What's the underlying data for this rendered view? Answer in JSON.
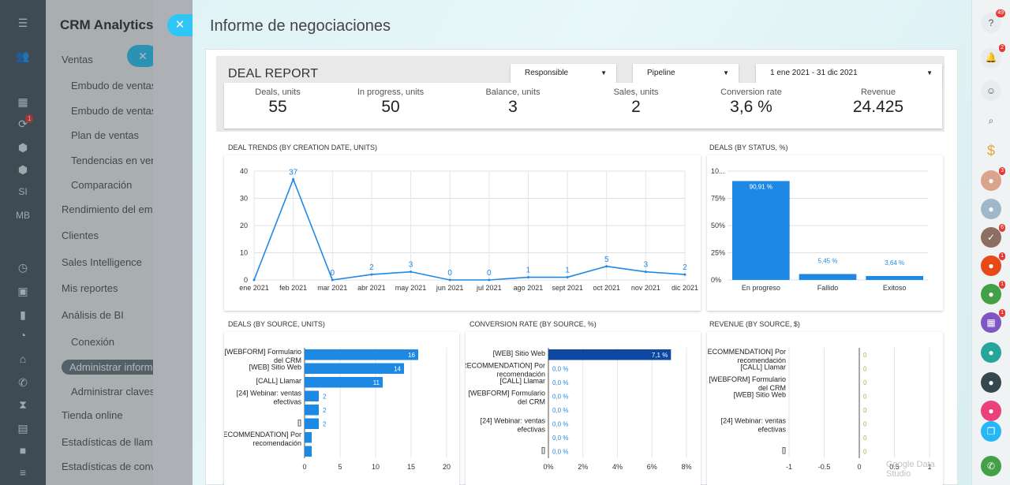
{
  "left_rail": {
    "badge_count": "1",
    "labels": [
      "SI",
      "MB"
    ]
  },
  "menu": {
    "title": "CRM Analytics",
    "items": [
      {
        "label": "Ventas",
        "sub": false
      },
      {
        "label": "Embudo de ventas",
        "sub": true
      },
      {
        "label": "Embudo de ventas",
        "sub": true
      },
      {
        "label": "Plan de ventas",
        "sub": true
      },
      {
        "label": "Tendencias en vent",
        "sub": true
      },
      {
        "label": "Comparación",
        "sub": true
      },
      {
        "label": "Rendimiento del emp",
        "sub": false
      },
      {
        "label": "Clientes",
        "sub": false
      },
      {
        "label": "Sales Intelligence",
        "sub": false
      },
      {
        "label": "Mis reportes",
        "sub": false
      },
      {
        "label": "Análisis de BI",
        "sub": false
      },
      {
        "label": "Conexión",
        "sub": true
      },
      {
        "label": "Administrar inform",
        "sub": false,
        "active": true
      },
      {
        "label": "Administrar claves",
        "sub": true
      },
      {
        "label": "Tienda online",
        "sub": false
      },
      {
        "label": "Estadísticas de llama",
        "sub": false
      },
      {
        "label": "Estadísticas de conve",
        "sub": false
      }
    ]
  },
  "slider": {
    "title": "Informe de negociaciones"
  },
  "report": {
    "title": "DEAL REPORT",
    "filters": {
      "responsible": "Responsible",
      "pipeline": "Pipeline",
      "date_range": "1 ene 2021 - 31 dic 2021"
    },
    "kpis": [
      {
        "label": "Deals, units",
        "value": "55"
      },
      {
        "label": "In progress, units",
        "value": "50"
      },
      {
        "label": "Balance, units",
        "value": "3"
      },
      {
        "label": "Sales, units",
        "value": "2"
      },
      {
        "label": "Conversion rate",
        "value": "3,6 %"
      },
      {
        "label": "Revenue",
        "value": "24.425"
      }
    ],
    "watermark": "Google Data Studio"
  },
  "chart_data": [
    {
      "type": "line",
      "title": "DEAL TRENDS (BY CREATION DATE, UNITS)",
      "categories": [
        "ene 2021",
        "feb 2021",
        "mar 2021",
        "abr 2021",
        "may 2021",
        "jun 2021",
        "jul 2021",
        "ago 2021",
        "sept 2021",
        "oct 2021",
        "nov 2021",
        "dic 2021"
      ],
      "values": [
        0,
        37,
        0,
        2,
        3,
        0,
        0,
        1,
        1,
        5,
        3,
        2
      ],
      "point_labels": [
        "",
        "37",
        "0",
        "2",
        "3",
        "0",
        "0",
        "1",
        "1",
        "5",
        "3",
        "2"
      ],
      "ylim": [
        0,
        40
      ],
      "yticks": [
        "0",
        "10",
        "20",
        "30",
        "40"
      ],
      "color": "#1e88e5",
      "grid": true
    },
    {
      "type": "bar",
      "title": "DEALS (BY STATUS, %)",
      "categories": [
        "En progreso",
        "Fallido",
        "Exitoso"
      ],
      "values": [
        90.91,
        5.45,
        3.64
      ],
      "value_labels": [
        "90,91 %",
        "5,45 %",
        "3,64 %"
      ],
      "ylim": [
        0,
        100
      ],
      "yticks": [
        "0%",
        "25%",
        "50%",
        "75%",
        "10..."
      ],
      "color": "#1e88e5"
    },
    {
      "type": "bar",
      "orientation": "horizontal",
      "title": "DEALS (BY SOURCE, UNITS)",
      "categories": [
        "[WEBFORM] Formulario del CRM",
        "[WEB] Sitio Web",
        "[CALL] Llamar",
        "[24] Webinar: ventas efectivas",
        "",
        "[]",
        "[RECOMMENDATION] Por recomendación",
        ""
      ],
      "values": [
        16,
        14,
        11,
        2,
        2,
        2,
        1,
        1
      ],
      "value_labels": [
        "16",
        "14",
        "11",
        "2",
        "2",
        "2",
        "",
        ""
      ],
      "xlim": [
        0,
        20
      ],
      "xticks": [
        "0",
        "5",
        "10",
        "15",
        "20"
      ],
      "color": "#1e88e5"
    },
    {
      "type": "bar",
      "orientation": "horizontal",
      "title": "CONVERSION RATE (BY SOURCE, %)",
      "categories": [
        "[WEB] Sitio Web",
        "[RECOMMENDATION] Por recomendación",
        "[CALL] Llamar",
        "[WEBFORM] Formulario del CRM",
        "",
        "[24] Webinar: ventas efectivas",
        "",
        "[]"
      ],
      "values": [
        7.1,
        0,
        0,
        0,
        0,
        0,
        0,
        0
      ],
      "value_labels": [
        "7,1 %",
        "0,0 %",
        "0,0 %",
        "0,0 %",
        "0,0 %",
        "0,0 %",
        "0,0 %",
        "0,0 %"
      ],
      "xlim": [
        0,
        8
      ],
      "xticks": [
        "0%",
        "2%",
        "4%",
        "6%",
        "8%"
      ],
      "color": "#0d47a1"
    },
    {
      "type": "bar",
      "orientation": "horizontal",
      "title": "REVENUE (BY SOURCE, $)",
      "categories": [
        "[RECOMMENDATION] Por recomendación",
        "[CALL] Llamar",
        "[WEBFORM] Formulario del CRM",
        "[WEB] Sitio Web",
        "",
        "[24] Webinar: ventas efectivas",
        "",
        "[]"
      ],
      "values": [
        0,
        0,
        0,
        0,
        0,
        0,
        0,
        0
      ],
      "value_labels": [
        "0",
        "0",
        "0",
        "0",
        "0",
        "0",
        "0",
        "0"
      ],
      "xlim": [
        -1,
        1
      ],
      "xticks": [
        "-1",
        "-0.5",
        "0",
        "0.5",
        "1"
      ],
      "color": "#c0ca33"
    }
  ],
  "right_rail": {
    "badges": [
      "49",
      "2",
      "3",
      "6",
      "1",
      "1",
      "1"
    ]
  }
}
